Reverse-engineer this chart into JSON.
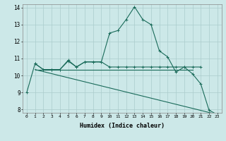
{
  "bg_color": "#cce8e8",
  "grid_color": "#aacccc",
  "line_color": "#1a6b5a",
  "xlabel": "Humidex (Indice chaleur)",
  "xlim": [
    -0.5,
    23.5
  ],
  "ylim": [
    7.8,
    14.2
  ],
  "yticks": [
    8,
    9,
    10,
    11,
    12,
    13,
    14
  ],
  "xticks": [
    0,
    1,
    2,
    3,
    4,
    5,
    6,
    7,
    8,
    9,
    10,
    11,
    12,
    13,
    14,
    15,
    16,
    17,
    18,
    19,
    20,
    21,
    22,
    23
  ],
  "line1_x": [
    0,
    1,
    2,
    3,
    4,
    5,
    6,
    7,
    8,
    9,
    10,
    11,
    12,
    13,
    14,
    15,
    16,
    17,
    18,
    19,
    20,
    21,
    22,
    23
  ],
  "line1_y": [
    9.0,
    10.7,
    10.35,
    10.35,
    10.35,
    10.9,
    10.5,
    10.8,
    10.8,
    10.8,
    12.5,
    12.65,
    13.3,
    14.05,
    13.3,
    13.0,
    11.45,
    11.1,
    10.2,
    10.5,
    10.1,
    9.5,
    7.95,
    7.7
  ],
  "line2_x": [
    1,
    2,
    3,
    4,
    5,
    6,
    7,
    8,
    9,
    10,
    11,
    12,
    13,
    14,
    15,
    16,
    17,
    18,
    19,
    20,
    21
  ],
  "line2_y": [
    10.7,
    10.35,
    10.35,
    10.35,
    10.85,
    10.5,
    10.8,
    10.8,
    10.8,
    10.5,
    10.5,
    10.5,
    10.5,
    10.5,
    10.5,
    10.5,
    10.5,
    10.5,
    10.5,
    10.5,
    10.5
  ],
  "line3_x": [
    1,
    20
  ],
  "line3_y": [
    10.35,
    10.35
  ],
  "line4_x": [
    1,
    23
  ],
  "line4_y": [
    10.35,
    7.7
  ]
}
